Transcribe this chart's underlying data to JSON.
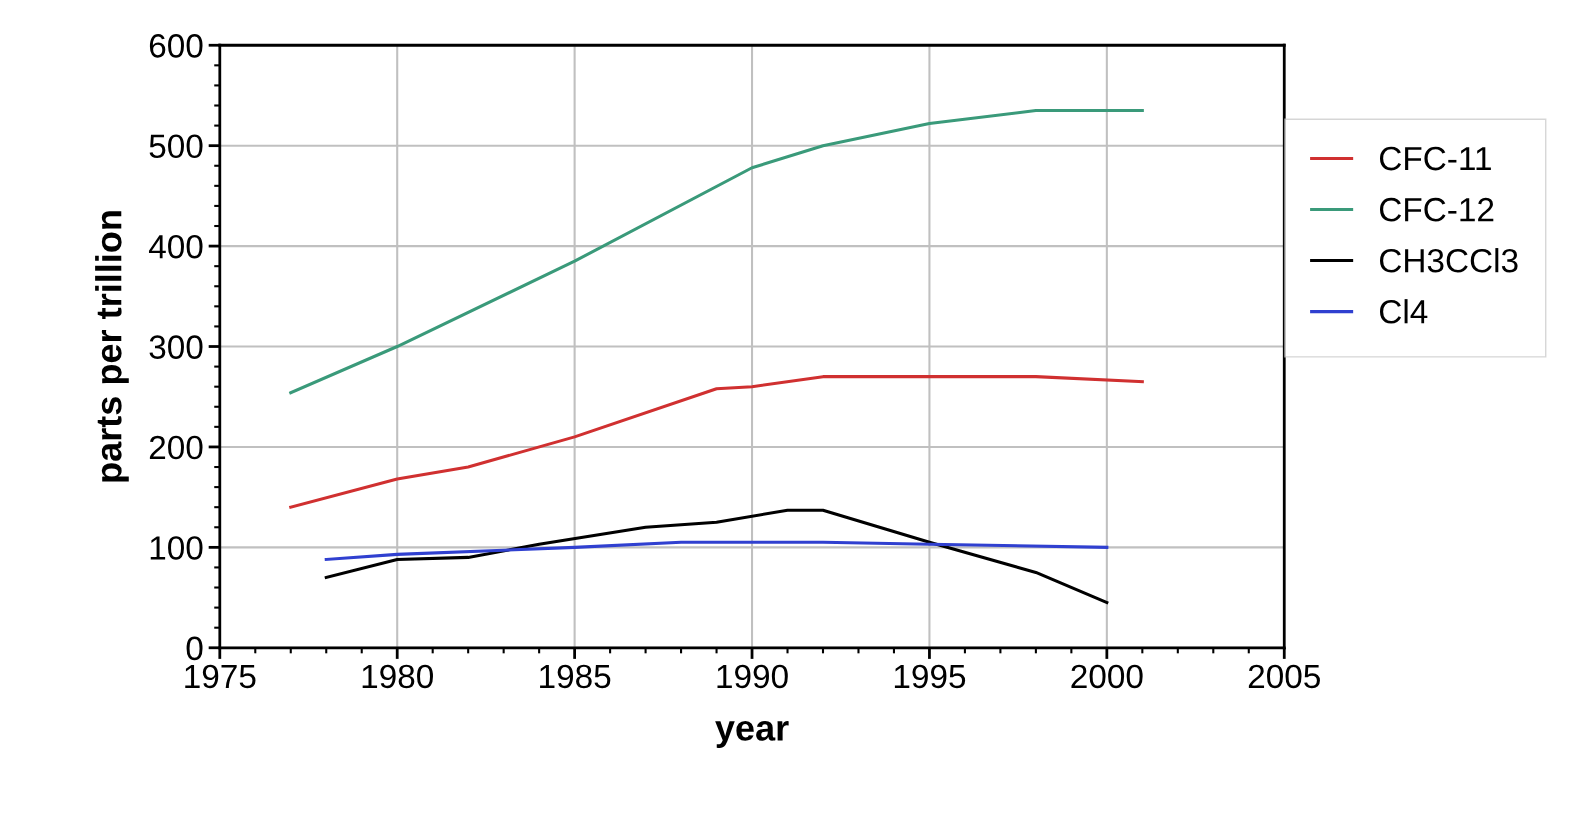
{
  "chart_data": {
    "type": "line",
    "xlabel": "year",
    "ylabel": "parts per trillion",
    "xlim": [
      1975,
      2005
    ],
    "xticks": [
      1975,
      1980,
      1985,
      1990,
      1995,
      2000,
      2005
    ],
    "ylim": [
      0,
      600
    ],
    "yticks": [
      0,
      100,
      200,
      300,
      400,
      500,
      600
    ],
    "grid": true,
    "legend": "right",
    "marker": "none",
    "line_style": "solid",
    "series": [
      {
        "name": "CFC-11",
        "color": "#d03030",
        "x": [
          1977,
          1980,
          1982,
          1985,
          1989,
          1990,
          1992,
          1995,
          1998,
          2001
        ],
        "values": [
          140,
          168,
          180,
          210,
          258,
          260,
          270,
          270,
          270,
          265
        ]
      },
      {
        "name": "CFC-12",
        "color": "#3a9a7a",
        "x": [
          1977,
          1980,
          1985,
          1990,
          1992,
          1995,
          1998,
          2001
        ],
        "values": [
          254,
          300,
          385,
          478,
          500,
          522,
          535,
          535
        ]
      },
      {
        "name": "CH3CCl3",
        "color": "#000000",
        "x": [
          1978,
          1980,
          1982,
          1984,
          1987,
          1989,
          1991,
          1992,
          1995,
          1998,
          2000
        ],
        "values": [
          70,
          88,
          90,
          103,
          120,
          125,
          137,
          137,
          105,
          75,
          45
        ]
      },
      {
        "name": "Cl4",
        "color": "#3040d0",
        "x": [
          1978,
          1980,
          1985,
          1988,
          1992,
          1995,
          2000
        ],
        "values": [
          88,
          93,
          100,
          105,
          105,
          103,
          100
        ]
      }
    ]
  }
}
